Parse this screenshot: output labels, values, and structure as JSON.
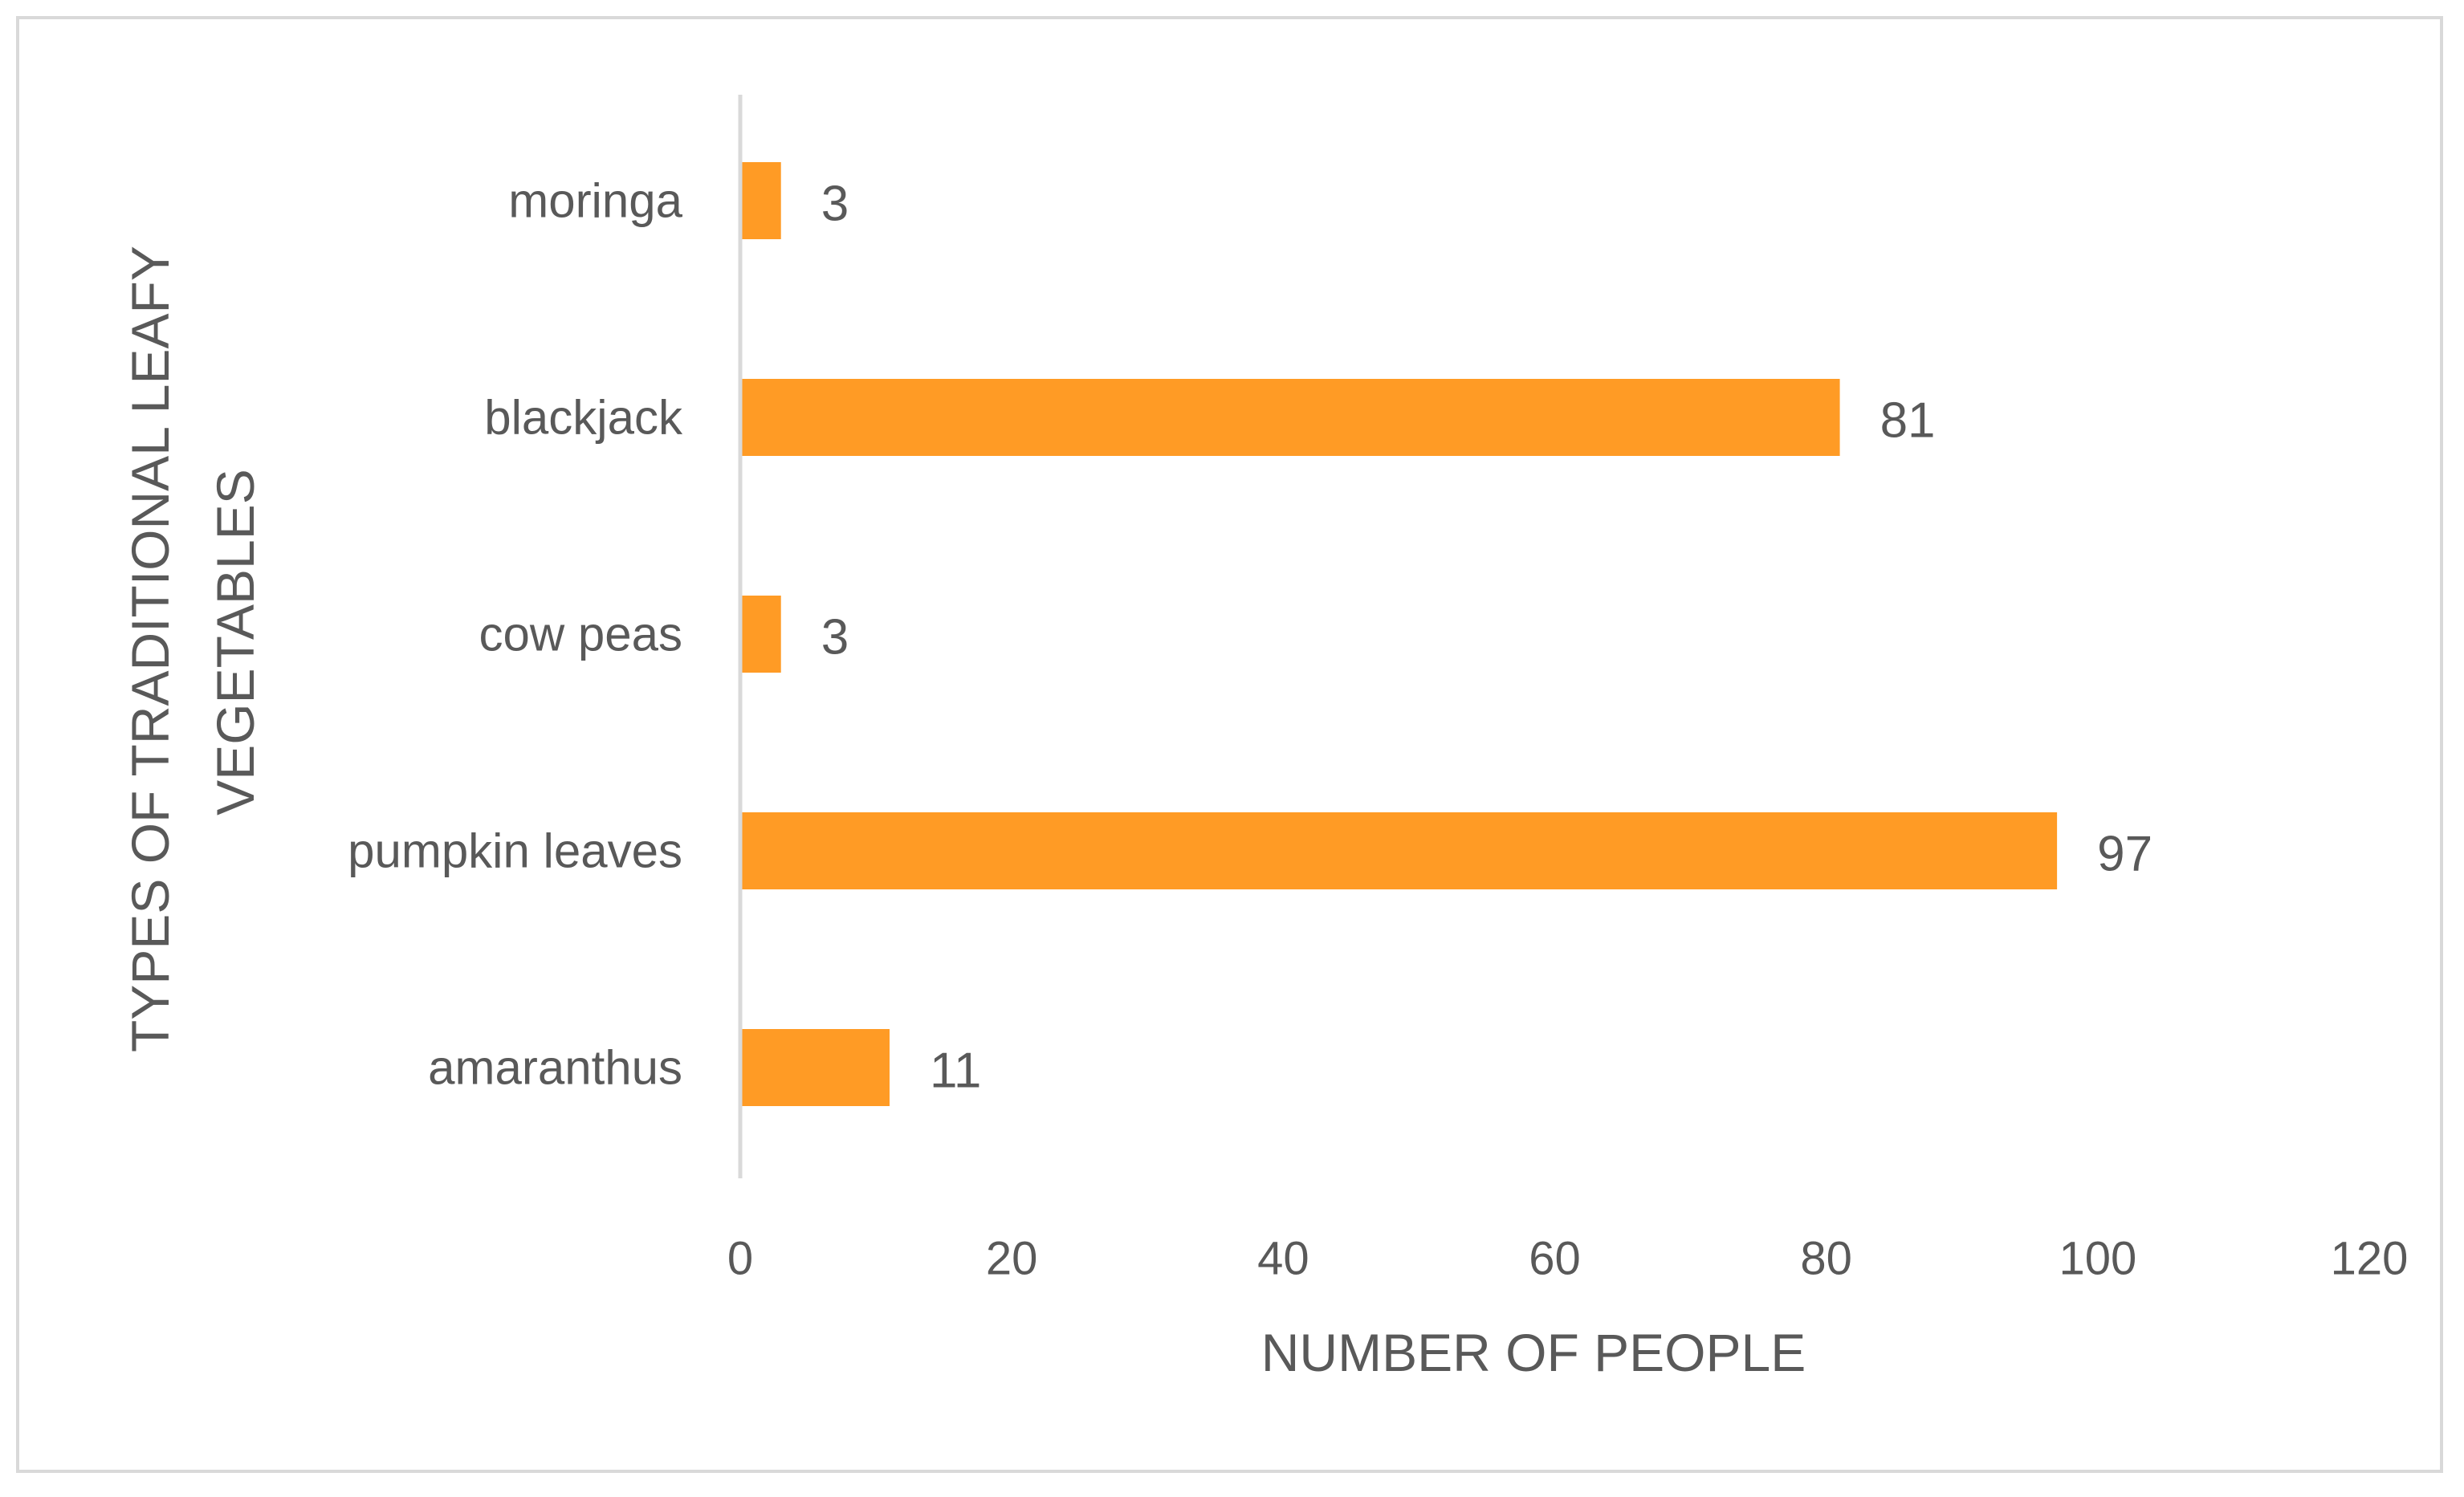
{
  "chart_data": {
    "type": "bar",
    "orientation": "horizontal",
    "categories": [
      "moringa",
      "blackjack",
      "cow peas",
      "pumpkin leaves",
      "amaranthus"
    ],
    "values": [
      3,
      81,
      3,
      97,
      11
    ],
    "data_labels": [
      "3",
      "81",
      "3",
      "97",
      "11"
    ],
    "xlabel": "NUMBER OF PEOPLE",
    "ylabel_lines": [
      "TYPES OF TRADITIONAL LEAFY",
      "VEGETABLES"
    ],
    "xlim": [
      0,
      120
    ],
    "xticks": [
      0,
      20,
      40,
      60,
      80,
      100,
      120
    ],
    "grid": false,
    "legend": "none",
    "bar_color": "#ff9b25",
    "axis_color": "#d9d9d9",
    "text_color": "#595959"
  }
}
